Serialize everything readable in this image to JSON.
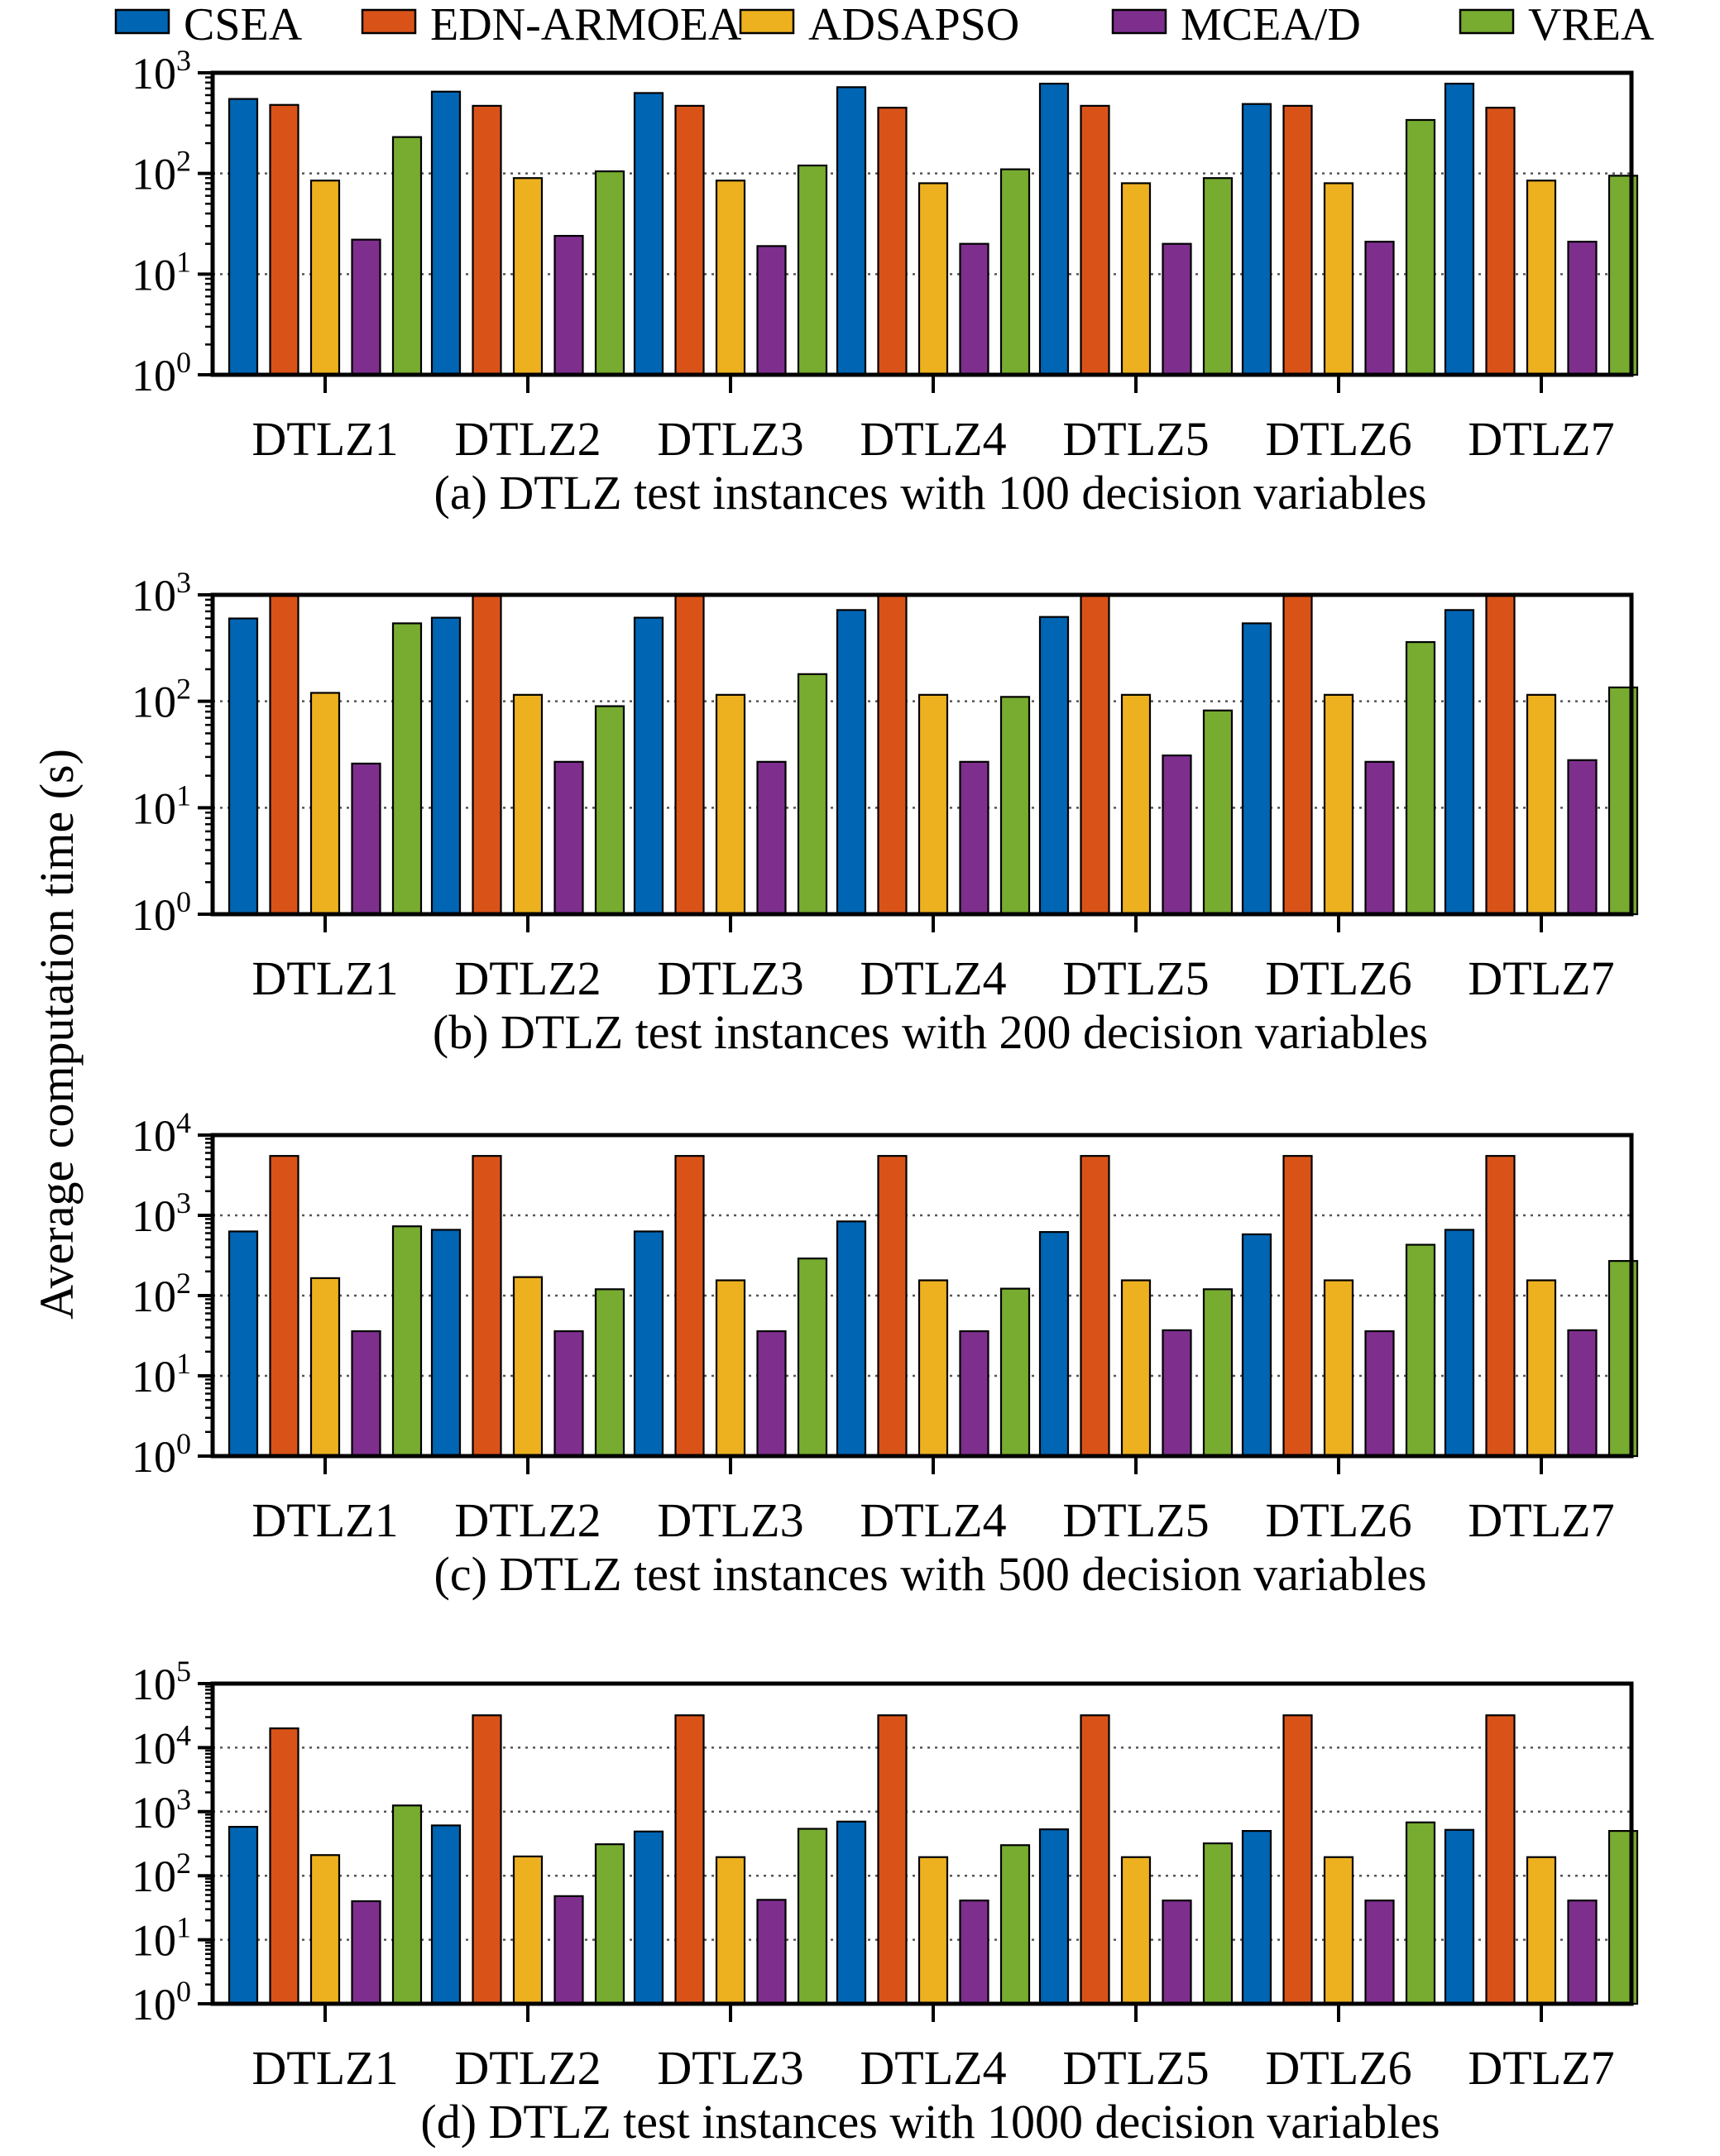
{
  "figure": {
    "ylabel": "Average computation time (s)",
    "legend": [
      {
        "name": "CSEA",
        "color": "#0065b3"
      },
      {
        "name": "EDN-ARMOEA",
        "color": "#d95319"
      },
      {
        "name": "ADSAPSO",
        "color": "#edb120"
      },
      {
        "name": "MCEA/D",
        "color": "#7e2f8e"
      },
      {
        "name": "VREA",
        "color": "#77ac30"
      }
    ]
  },
  "chart_data": [
    {
      "type": "bar",
      "caption": "(a) DTLZ test instances with 100 decision variables",
      "categories": [
        "DTLZ1",
        "DTLZ2",
        "DTLZ3",
        "DTLZ4",
        "DTLZ5",
        "DTLZ6",
        "DTLZ7"
      ],
      "yscale": "log",
      "ylim": [
        1,
        1000
      ],
      "grid": "dotted horizontal at decades",
      "yticks": [
        {
          "base": "10",
          "exp": "0"
        },
        {
          "base": "10",
          "exp": "1"
        },
        {
          "base": "10",
          "exp": "2"
        },
        {
          "base": "10",
          "exp": "3"
        }
      ],
      "series": [
        {
          "name": "CSEA",
          "values": [
            550,
            650,
            630,
            720,
            780,
            490,
            780
          ]
        },
        {
          "name": "EDN-ARMOEA",
          "values": [
            480,
            470,
            470,
            450,
            470,
            470,
            450
          ]
        },
        {
          "name": "ADSAPSO",
          "values": [
            85,
            90,
            85,
            80,
            80,
            80,
            85
          ]
        },
        {
          "name": "MCEA/D",
          "values": [
            22,
            24,
            19,
            20,
            20,
            21,
            21
          ]
        },
        {
          "name": "VREA",
          "values": [
            230,
            105,
            120,
            110,
            90,
            340,
            95
          ]
        }
      ]
    },
    {
      "type": "bar",
      "caption": "(b) DTLZ test instances with 200 decision variables",
      "categories": [
        "DTLZ1",
        "DTLZ2",
        "DTLZ3",
        "DTLZ4",
        "DTLZ5",
        "DTLZ6",
        "DTLZ7"
      ],
      "yscale": "log",
      "ylim": [
        1,
        1000
      ],
      "grid": "dotted horizontal at decades",
      "yticks": [
        {
          "base": "10",
          "exp": "0"
        },
        {
          "base": "10",
          "exp": "1"
        },
        {
          "base": "10",
          "exp": "2"
        },
        {
          "base": "10",
          "exp": "3"
        }
      ],
      "series": [
        {
          "name": "CSEA",
          "values": [
            600,
            610,
            610,
            720,
            620,
            540,
            720
          ]
        },
        {
          "name": "EDN-ARMOEA",
          "values": [
            1000,
            1000,
            1000,
            980,
            1000,
            1000,
            980
          ]
        },
        {
          "name": "ADSAPSO",
          "values": [
            120,
            115,
            115,
            115,
            115,
            115,
            115
          ]
        },
        {
          "name": "MCEA/D",
          "values": [
            26,
            27,
            27,
            27,
            31,
            27,
            28
          ]
        },
        {
          "name": "VREA",
          "values": [
            540,
            90,
            180,
            110,
            82,
            360,
            135
          ]
        }
      ]
    },
    {
      "type": "bar",
      "caption": "(c) DTLZ test instances with 500 decision variables",
      "categories": [
        "DTLZ1",
        "DTLZ2",
        "DTLZ3",
        "DTLZ4",
        "DTLZ5",
        "DTLZ6",
        "DTLZ7"
      ],
      "yscale": "log",
      "ylim": [
        1,
        10000
      ],
      "grid": "dotted horizontal at decades",
      "yticks": [
        {
          "base": "10",
          "exp": "0"
        },
        {
          "base": "10",
          "exp": "1"
        },
        {
          "base": "10",
          "exp": "2"
        },
        {
          "base": "10",
          "exp": "3"
        },
        {
          "base": "10",
          "exp": "4"
        }
      ],
      "series": [
        {
          "name": "CSEA",
          "values": [
            630,
            660,
            630,
            840,
            620,
            580,
            660
          ]
        },
        {
          "name": "EDN-ARMOEA",
          "values": [
            5500,
            5500,
            5500,
            5500,
            5500,
            5500,
            5500
          ]
        },
        {
          "name": "ADSAPSO",
          "values": [
            165,
            170,
            155,
            155,
            155,
            155,
            155
          ]
        },
        {
          "name": "MCEA/D",
          "values": [
            36,
            36,
            36,
            36,
            37,
            36,
            37
          ]
        },
        {
          "name": "VREA",
          "values": [
            730,
            120,
            290,
            122,
            120,
            430,
            270
          ]
        }
      ]
    },
    {
      "type": "bar",
      "caption": "(d) DTLZ test instances with 1000 decision variables",
      "categories": [
        "DTLZ1",
        "DTLZ2",
        "DTLZ3",
        "DTLZ4",
        "DTLZ5",
        "DTLZ6",
        "DTLZ7"
      ],
      "yscale": "log",
      "ylim": [
        1,
        100000
      ],
      "grid": "dotted horizontal at decades",
      "yticks": [
        {
          "base": "10",
          "exp": "0"
        },
        {
          "base": "10",
          "exp": "1"
        },
        {
          "base": "10",
          "exp": "2"
        },
        {
          "base": "10",
          "exp": "3"
        },
        {
          "base": "10",
          "exp": "4"
        },
        {
          "base": "10",
          "exp": "5"
        }
      ],
      "series": [
        {
          "name": "CSEA",
          "values": [
            580,
            610,
            490,
            700,
            530,
            500,
            520
          ]
        },
        {
          "name": "EDN-ARMOEA",
          "values": [
            20000,
            32000,
            32000,
            32000,
            32000,
            32000,
            32000
          ]
        },
        {
          "name": "ADSAPSO",
          "values": [
            210,
            200,
            195,
            195,
            195,
            195,
            195
          ]
        },
        {
          "name": "MCEA/D",
          "values": [
            40,
            48,
            42,
            41,
            41,
            41,
            41
          ]
        },
        {
          "name": "VREA",
          "values": [
            1250,
            310,
            540,
            300,
            320,
            680,
            500
          ]
        }
      ]
    }
  ]
}
